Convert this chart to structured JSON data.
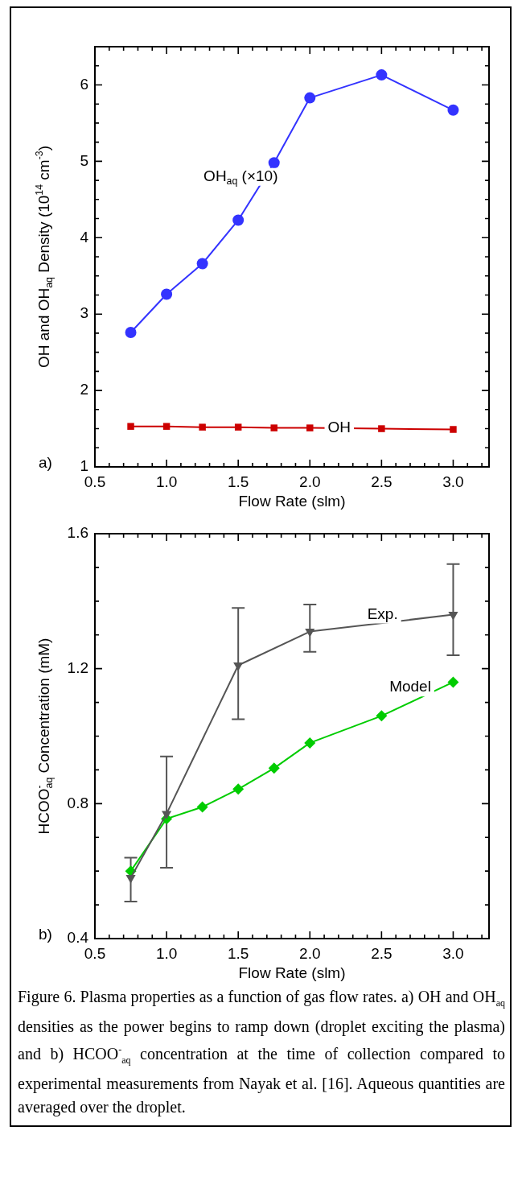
{
  "chart_data": [
    {
      "type": "line",
      "xlabel": "Flow Rate (slm)",
      "ylabel": "OH and OH$_{aq}$ Density (10$^{14}$ cm$^{-3}$)",
      "x": [
        0.75,
        1.0,
        1.25,
        1.5,
        1.75,
        2.0,
        2.5,
        3.0
      ],
      "series": [
        {
          "name": "OH$_{aq}$ (×10)",
          "color": "#3333ff",
          "marker": "circle",
          "values": [
            2.76,
            3.26,
            3.66,
            4.23,
            4.98,
            5.83,
            6.13,
            5.67
          ]
        },
        {
          "name": "OH",
          "color": "#cc0000",
          "marker": "square",
          "values": [
            1.53,
            1.53,
            1.52,
            1.52,
            1.51,
            1.51,
            1.5,
            1.49
          ]
        }
      ],
      "xlim": [
        0.5,
        3.25
      ],
      "xticks": [
        0.5,
        {
          "value": 1,
          "label": "1.0"
        },
        1.5,
        {
          "value": 2,
          "label": "2.0"
        },
        2.5,
        {
          "value": 3,
          "label": "3.0"
        }
      ],
      "ylim": [
        1,
        6.5
      ],
      "yticks": [
        1,
        2,
        3,
        4,
        5,
        6
      ],
      "grid": false,
      "legend": false,
      "annotations": [
        "a)"
      ]
    },
    {
      "type": "line",
      "xlabel": "Flow Rate (slm)",
      "ylabel": "HCOO$^{-}$$_{aq}$ Concentration (mM)",
      "series": [
        {
          "name": "Exp.",
          "color": "#555555",
          "marker": "triangle",
          "x": [
            0.75,
            1.0,
            1.5,
            2.0,
            3.0
          ],
          "values": [
            0.58,
            0.77,
            1.21,
            1.31,
            1.36
          ],
          "errors": [
            [
              0.51,
              0.64
            ],
            [
              0.61,
              0.94
            ],
            [
              1.05,
              1.38
            ],
            [
              1.25,
              1.39
            ],
            [
              1.24,
              1.51
            ]
          ]
        },
        {
          "name": "Model",
          "color": "#00cc00",
          "marker": "diamond",
          "x": [
            0.75,
            1.0,
            1.25,
            1.5,
            1.75,
            2.0,
            2.5,
            3.0
          ],
          "values": [
            0.6,
            0.755,
            0.79,
            0.843,
            0.905,
            0.98,
            1.06,
            1.16
          ]
        }
      ],
      "xlim": [
        0.5,
        3.25
      ],
      "xticks": [
        0.5,
        {
          "value": 1,
          "label": "1.0"
        },
        1.5,
        {
          "value": 2,
          "label": "2.0"
        },
        2.5,
        {
          "value": 3,
          "label": "3.0"
        }
      ],
      "ylim": [
        0.4,
        1.6
      ],
      "yticks": [
        0.4,
        0.8,
        1.2,
        1.6
      ],
      "grid": false,
      "legend": false,
      "annotations": [
        "b)",
        "Figure 6.  Plasma properties as a function of gas flow rates.  a) OH and OH$_{aq}$ densities as the power begins to ramp down (droplet exciting the plasma) and b) HCOO$^{-}$$_{aq}$ concentration at the time of collection compared to experimental measurements from Nayak et al. [16].  Aqueous quantities are averaged over the droplet."
      ]
    }
  ]
}
